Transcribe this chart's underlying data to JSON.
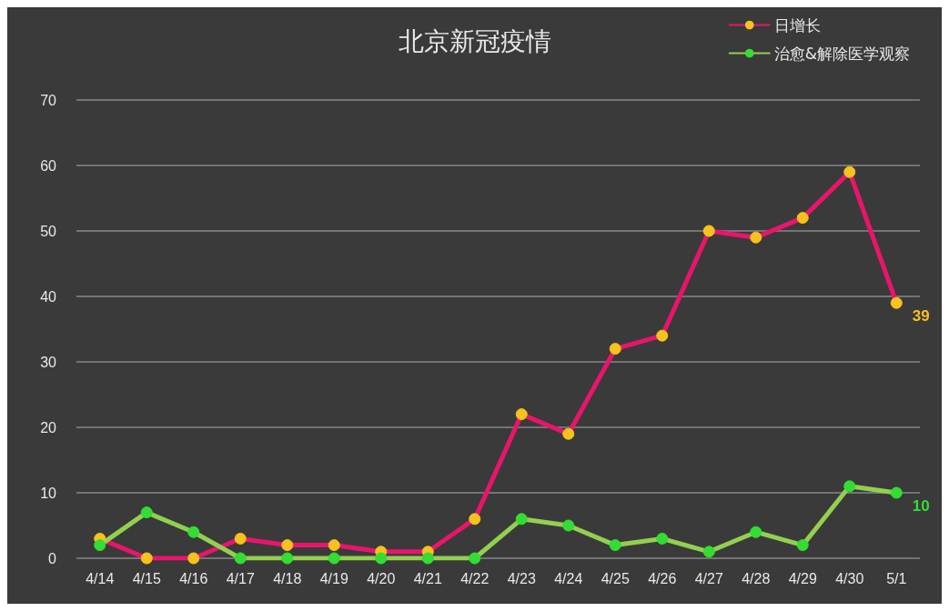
{
  "chart_data": {
    "type": "line",
    "title": "北京新冠疫情",
    "categories": [
      "4/14",
      "4/15",
      "4/16",
      "4/17",
      "4/18",
      "4/19",
      "4/20",
      "4/21",
      "4/22",
      "4/23",
      "4/24",
      "4/25",
      "4/26",
      "4/27",
      "4/28",
      "4/29",
      "4/30",
      "5/1"
    ],
    "series": [
      {
        "name": "日增长",
        "color": "#e8156b",
        "colors": [
          "#f7c21e",
          "#f7c21e",
          "#f7c21e",
          "#f7c21e",
          "#f7c21e",
          "#f7c21e",
          "#f7c21e",
          "#f7c21e",
          "#f7c21e",
          "#f7c21e",
          "#f7c21e",
          "#f7c21e",
          "#f7c21e",
          "#f7c21e",
          "#f7c21e",
          "#f7c21e",
          "#f7c21e",
          "#f7c21e"
        ],
        "values": [
          3,
          0,
          0,
          3,
          2,
          2,
          1,
          1,
          6,
          22,
          19,
          32,
          34,
          50,
          49,
          52,
          59,
          39
        ],
        "value_labels": [
          null,
          null,
          null,
          null,
          null,
          null,
          null,
          null,
          null,
          null,
          null,
          null,
          null,
          null,
          null,
          null,
          null,
          "39"
        ]
      },
      {
        "name": "治愈&解除医学观察",
        "color": "#92d050",
        "colors": [
          "#33dd33",
          "#33dd33",
          "#33dd33",
          "#33dd33",
          "#33dd33",
          "#33dd33",
          "#33dd33",
          "#33dd33",
          "#33dd33",
          "#33dd33",
          "#33dd33",
          "#33dd33",
          "#33dd33",
          "#33dd33",
          "#33dd33",
          "#33dd33",
          "#33dd33",
          "#33dd33"
        ],
        "values": [
          2,
          7,
          4,
          0,
          0,
          0,
          0,
          0,
          0,
          6,
          5,
          2,
          3,
          1,
          4,
          2,
          11,
          10
        ],
        "value_labels": [
          null,
          null,
          null,
          null,
          null,
          null,
          null,
          null,
          null,
          null,
          null,
          null,
          null,
          null,
          null,
          null,
          null,
          "10"
        ]
      }
    ],
    "ylim": [
      0,
      70
    ],
    "yticks": [
      0,
      10,
      20,
      30,
      40,
      50,
      60,
      70
    ],
    "grid": "y",
    "legend": "top right",
    "marker": "circle",
    "line_style": "solid"
  }
}
